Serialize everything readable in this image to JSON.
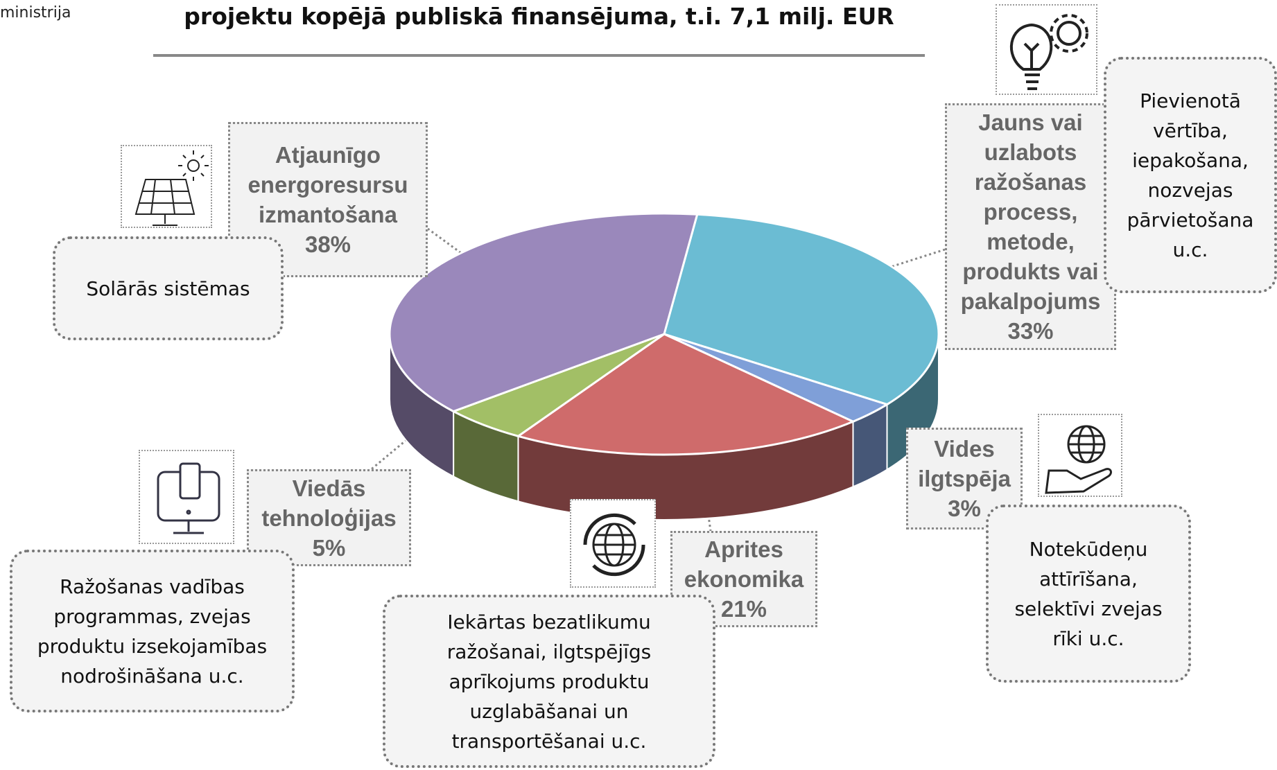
{
  "header": {
    "text": "ministrija"
  },
  "chart_data": {
    "type": "pie",
    "title": "projektu kopējā publiskā finansējuma, t.i. 7,1 milj. EUR",
    "categories": [
      "Jauns vai uzlabots ražošanas process, metode, produkts vai pakalpojums",
      "Vides ilgtspēja",
      "Aprites ekonomika",
      "Viedās tehnoloģijas",
      "Atjaunīgo energoresursu izmantošana"
    ],
    "values": [
      33,
      3,
      21,
      5,
      38
    ],
    "value_labels": [
      "33%",
      "3%",
      "21%",
      "5%",
      "38%"
    ],
    "colors": [
      "#6bbcd3",
      "#7f9fd8",
      "#cf6b6b",
      "#a2bf66",
      "#9a88bb"
    ],
    "descriptions": [
      "Pievienotā vērtība, iepakošana, nozvejas pārvietošana u.c.",
      "Notekūdeņu attīrīšana, selektīvi zvejas rīki u.c.",
      "Iekārtas bezatlikumu ražošanai, ilgtspējīgs aprīkojums produktu uzglabāšanai un transportēšanai u.c.",
      "Ražošanas vadības programmas, zvejas produktu izsekojamības nodrošināšana u.c.",
      "Solārās sistēmas"
    ]
  }
}
